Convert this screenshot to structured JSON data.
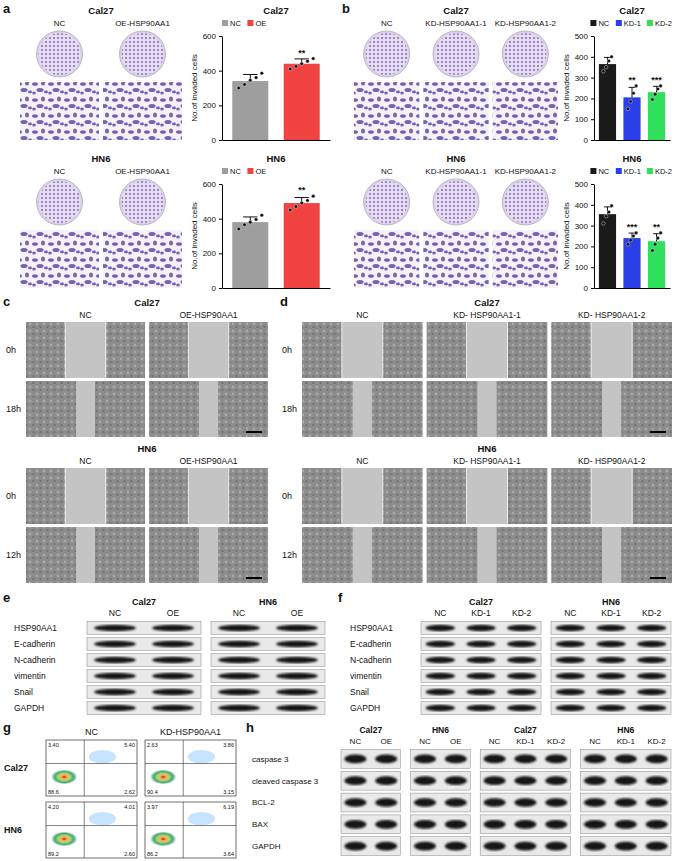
{
  "chart_data": [
    {
      "type": "bar",
      "title": "Cal27",
      "y_label": "No.of invaded cells",
      "categories": [
        "NC",
        "OE"
      ],
      "values": [
        340,
        440
      ],
      "errors": [
        38,
        28
      ],
      "points": [
        [
          300,
          320,
          345,
          360,
          385
        ],
        [
          410,
          425,
          440,
          455,
          470
        ]
      ],
      "colors": [
        "#9e9e9e",
        "#f24343"
      ],
      "ylim": [
        0,
        600
      ],
      "yticks": [
        0,
        200,
        400,
        600
      ],
      "legend": "top",
      "tick_labels": "y",
      "annotations": [
        {
          "index": 1,
          "text": "**"
        }
      ]
    },
    {
      "type": "bar",
      "title": "HN6",
      "y_label": "No.of invaded cells",
      "categories": [
        "NC",
        "OE"
      ],
      "values": [
        380,
        490
      ],
      "errors": [
        30,
        32
      ],
      "points": [
        [
          340,
          365,
          380,
          395,
          420
        ],
        [
          450,
          470,
          490,
          505,
          530
        ]
      ],
      "colors": [
        "#9e9e9e",
        "#f24343"
      ],
      "ylim": [
        0,
        600
      ],
      "yticks": [
        0,
        200,
        400,
        600
      ],
      "legend": "top",
      "tick_labels": "y",
      "annotations": [
        {
          "index": 1,
          "text": "**"
        }
      ]
    },
    {
      "type": "bar",
      "title": "Cal27",
      "y_label": "No.of invaded cells",
      "categories": [
        "NC",
        "KD-1",
        "KD-2"
      ],
      "values": [
        365,
        205,
        230
      ],
      "errors": [
        32,
        48,
        28
      ],
      "points": [
        [
          330,
          350,
          380,
          400
        ],
        [
          150,
          185,
          225,
          260
        ],
        [
          195,
          220,
          245,
          260
        ]
      ],
      "colors": [
        "#1a1a1a",
        "#2a3fe8",
        "#2fe05a"
      ],
      "ylim": [
        0,
        500
      ],
      "yticks": [
        0,
        100,
        200,
        300,
        400,
        500
      ],
      "legend": "top",
      "tick_labels": "y",
      "annotations": [
        {
          "index": 1,
          "text": "**"
        },
        {
          "index": 2,
          "text": "***"
        }
      ]
    },
    {
      "type": "bar",
      "title": "HN6",
      "y_label": "No.of invaded cells",
      "categories": [
        "NC",
        "KD-1",
        "KD-2"
      ],
      "values": [
        355,
        240,
        225
      ],
      "errors": [
        35,
        24,
        36
      ],
      "points": [
        [
          310,
          345,
          365,
          395
        ],
        [
          210,
          230,
          250,
          265
        ],
        [
          180,
          210,
          240,
          265
        ]
      ],
      "colors": [
        "#1a1a1a",
        "#2a3fe8",
        "#2fe05a"
      ],
      "ylim": [
        0,
        500
      ],
      "yticks": [
        0,
        100,
        200,
        300,
        400,
        500
      ],
      "legend": "top",
      "tick_labels": "y",
      "annotations": [
        {
          "index": 1,
          "text": "***"
        },
        {
          "index": 2,
          "text": "**"
        }
      ]
    }
  ],
  "panels": {
    "a": {
      "letter": "a",
      "groups": [
        {
          "cell_line": "Cal27",
          "labels": [
            "NC",
            "OE-HSP90AA1"
          ]
        },
        {
          "cell_line": "HN6",
          "labels": [
            "NC",
            "OE-HSP90AA1"
          ]
        }
      ]
    },
    "b": {
      "letter": "b",
      "groups": [
        {
          "cell_line": "Cal27",
          "labels": [
            "NC",
            "KD-HSP90AA1-1",
            "KD-HSP90AA1-2"
          ]
        },
        {
          "cell_line": "HN6",
          "labels": [
            "NC",
            "KD-HSP90AA1-1",
            "KD-HSP90AA1-2"
          ]
        }
      ]
    },
    "c": {
      "letter": "c",
      "groups": [
        {
          "cell_line": "Cal27",
          "labels": [
            "NC",
            "OE-HSP90AA1"
          ],
          "times": [
            "0h",
            "18h"
          ]
        },
        {
          "cell_line": "HN6",
          "labels": [
            "NC",
            "OE-HSP90AA1"
          ],
          "times": [
            "0h",
            "12h"
          ]
        }
      ]
    },
    "d": {
      "letter": "d",
      "groups": [
        {
          "cell_line": "Cal27",
          "labels": [
            "NC",
            "KD- HSP90AA1-1",
            "KD- HSP90AA1-2"
          ],
          "times": [
            "0h",
            "18h"
          ]
        },
        {
          "cell_line": "HN6",
          "labels": [
            "NC",
            "KD- HSP90AA1-1",
            "KD- HSP90AA1-2"
          ],
          "times": [
            "0h",
            "12h"
          ]
        }
      ]
    },
    "e": {
      "letter": "e",
      "rows": [
        "HSP90AA1",
        "E-cadherin",
        "N-cadherin",
        "vimentin",
        "Snail",
        "GAPDH"
      ],
      "blots": [
        {
          "cell_line": "Cal27",
          "lanes": [
            "NC",
            "OE"
          ]
        },
        {
          "cell_line": "HN6",
          "lanes": [
            "NC",
            "OE"
          ]
        }
      ]
    },
    "f": {
      "letter": "f",
      "rows": [
        "HSP90AA1",
        "E-cadherin",
        "N-cadherin",
        "vimentin",
        "Snail",
        "GAPDH"
      ],
      "blots": [
        {
          "cell_line": "Cal27",
          "lanes": [
            "NC",
            "KD-1",
            "KD-2"
          ]
        },
        {
          "cell_line": "HN6",
          "lanes": [
            "NC",
            "KD-1",
            "KD-2"
          ]
        }
      ]
    },
    "g": {
      "letter": "g",
      "columns": [
        "NC",
        "KD-HSP90AA1"
      ],
      "rows": [
        "Cal27",
        "HN6"
      ],
      "quadrants": [
        [
          [
            "3.40",
            "5.40",
            "2.62",
            "88.6"
          ],
          [
            "2.63",
            "3.86",
            "3.15",
            "90.4"
          ]
        ],
        [
          [
            "4.20",
            "4.01",
            "2.60",
            "89.2"
          ],
          [
            "3.97",
            "6.19",
            "3.64",
            "86.2"
          ]
        ]
      ]
    },
    "h": {
      "letter": "h",
      "rows": [
        "caspase 3",
        "cleaved caspase 3",
        "BCL-2",
        "BAX",
        "GAPDH"
      ],
      "blots": [
        {
          "cell_line": "Cal27",
          "lanes": [
            "NC",
            "OE"
          ]
        },
        {
          "cell_line": "HN6",
          "lanes": [
            "NC",
            "OE"
          ]
        },
        {
          "cell_line": "Cal27",
          "lanes": [
            "NC",
            "KD-1",
            "KD-2"
          ]
        },
        {
          "cell_line": "HN6",
          "lanes": [
            "NC",
            "KD-1",
            "KD-2"
          ]
        }
      ]
    }
  }
}
